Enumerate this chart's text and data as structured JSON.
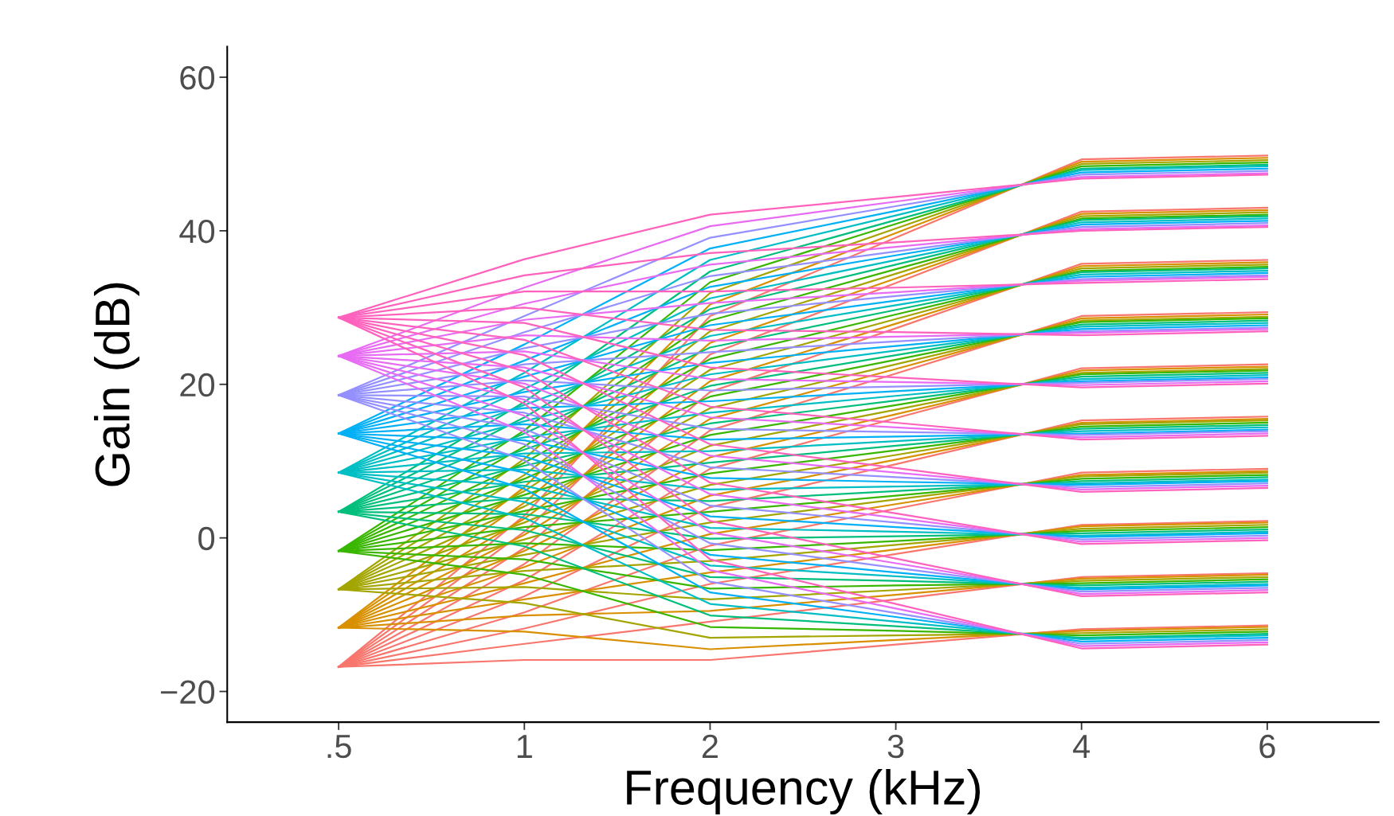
{
  "chart_data": {
    "type": "line",
    "xlabel": "Frequency (kHz)",
    "ylabel": "Gain (dB)",
    "categories": [
      ".5",
      "1",
      "2",
      "3",
      "4",
      "6"
    ],
    "ylim": [
      -24,
      64
    ],
    "yticks": [
      {
        "value": -20,
        "label": "−20"
      },
      0,
      20,
      40,
      60
    ],
    "grid": false,
    "marker": "none",
    "line_style": "solid",
    "series": [
      {
        "color": "#F8766D",
        "values": [
          -16.8,
          -15.9,
          -15.9,
          -13.9,
          -11.9,
          -11.4
        ]
      },
      {
        "color": "#F8766D",
        "values": [
          -16.8,
          -13.8,
          -10.9,
          -8.0,
          -5.1,
          -4.6
        ]
      },
      {
        "color": "#F8766D",
        "values": [
          -16.8,
          -11.8,
          -6.0,
          -2.1,
          1.7,
          2.2
        ]
      },
      {
        "color": "#F8766D",
        "values": [
          -16.8,
          -9.7,
          -1.0,
          3.8,
          8.5,
          9.0
        ]
      },
      {
        "color": "#F8766D",
        "values": [
          -16.8,
          -7.6,
          4.0,
          9.6,
          15.3,
          15.8
        ]
      },
      {
        "color": "#F8766D",
        "values": [
          -16.8,
          -5.5,
          9.0,
          15.6,
          22.1,
          22.6
        ]
      },
      {
        "color": "#F8766D",
        "values": [
          -16.8,
          -3.4,
          14.0,
          21.4,
          28.9,
          29.4
        ]
      },
      {
        "color": "#F8766D",
        "values": [
          -16.8,
          -1.3,
          19.0,
          27.3,
          35.7,
          36.2
        ]
      },
      {
        "color": "#F8766D",
        "values": [
          -16.8,
          0.8,
          23.9,
          33.2,
          42.5,
          43.0
        ]
      },
      {
        "color": "#F8766D",
        "values": [
          -16.8,
          2.9,
          28.9,
          39.1,
          49.3,
          49.8
        ]
      },
      {
        "color": "#D89000",
        "values": [
          -11.7,
          -12.2,
          -14.5,
          -13.3,
          -12.1,
          -11.6
        ]
      },
      {
        "color": "#D89000",
        "values": [
          -11.7,
          -10.1,
          -9.5,
          -7.4,
          -5.3,
          -4.8
        ]
      },
      {
        "color": "#D89000",
        "values": [
          -11.7,
          -8.0,
          -4.5,
          -1.5,
          1.5,
          2.0
        ]
      },
      {
        "color": "#D89000",
        "values": [
          -11.7,
          -5.9,
          0.5,
          4.4,
          8.2,
          8.7
        ]
      },
      {
        "color": "#D89000",
        "values": [
          -11.7,
          -3.8,
          5.5,
          10.2,
          15.0,
          15.5
        ]
      },
      {
        "color": "#D89000",
        "values": [
          -11.7,
          -1.7,
          10.5,
          16.1,
          21.8,
          22.3
        ]
      },
      {
        "color": "#D89000",
        "values": [
          -11.7,
          0.4,
          15.5,
          22.0,
          28.6,
          29.1
        ]
      },
      {
        "color": "#D89000",
        "values": [
          -11.7,
          2.5,
          20.4,
          27.9,
          35.4,
          35.9
        ]
      },
      {
        "color": "#D89000",
        "values": [
          -11.7,
          4.6,
          25.4,
          33.8,
          42.2,
          42.7
        ]
      },
      {
        "color": "#D89000",
        "values": [
          -11.7,
          6.6,
          30.4,
          39.7,
          49.0,
          49.5
        ]
      },
      {
        "color": "#A3A500",
        "values": [
          -6.7,
          -8.5,
          -13.0,
          -12.7,
          -12.4,
          -11.9
        ]
      },
      {
        "color": "#A3A500",
        "values": [
          -6.7,
          -6.4,
          -8.0,
          -6.8,
          -5.6,
          -5.1
        ]
      },
      {
        "color": "#A3A500",
        "values": [
          -6.7,
          -4.3,
          -3.0,
          -0.9,
          1.2,
          1.7
        ]
      },
      {
        "color": "#A3A500",
        "values": [
          -6.7,
          -2.2,
          2.0,
          5.0,
          8.0,
          8.5
        ]
      },
      {
        "color": "#A3A500",
        "values": [
          -6.7,
          -0.2,
          6.9,
          10.8,
          14.8,
          15.3
        ]
      },
      {
        "color": "#A3A500",
        "values": [
          -6.7,
          2.0,
          12.0,
          16.7,
          21.5,
          22.0
        ]
      },
      {
        "color": "#A3A500",
        "values": [
          -6.7,
          4.1,
          16.9,
          22.6,
          28.3,
          28.8
        ]
      },
      {
        "color": "#A3A500",
        "values": [
          -6.7,
          6.1,
          21.9,
          28.5,
          35.1,
          35.6
        ]
      },
      {
        "color": "#A3A500",
        "values": [
          -6.7,
          8.2,
          26.9,
          34.4,
          41.9,
          42.4
        ]
      },
      {
        "color": "#A3A500",
        "values": [
          -6.7,
          10.3,
          31.9,
          40.3,
          48.7,
          49.2
        ]
      },
      {
        "color": "#39B600",
        "values": [
          -1.7,
          -4.8,
          -11.6,
          -12.1,
          -12.7,
          -12.2
        ]
      },
      {
        "color": "#39B600",
        "values": [
          -1.7,
          -2.8,
          -6.6,
          -6.2,
          -5.9,
          -5.4
        ]
      },
      {
        "color": "#39B600",
        "values": [
          -1.7,
          -0.7,
          -1.6,
          -0.4,
          0.9,
          1.4
        ]
      },
      {
        "color": "#39B600",
        "values": [
          -1.7,
          1.4,
          3.4,
          5.5,
          7.7,
          8.2
        ]
      },
      {
        "color": "#39B600",
        "values": [
          -1.7,
          3.5,
          8.4,
          11.4,
          14.5,
          15.0
        ]
      },
      {
        "color": "#39B600",
        "values": [
          -1.7,
          5.6,
          13.4,
          17.3,
          21.3,
          21.8
        ]
      },
      {
        "color": "#39B600",
        "values": [
          -1.7,
          7.7,
          18.4,
          23.2,
          28.1,
          28.6
        ]
      },
      {
        "color": "#39B600",
        "values": [
          -1.7,
          9.8,
          23.3,
          29.1,
          34.8,
          35.3
        ]
      },
      {
        "color": "#39B600",
        "values": [
          -1.7,
          11.9,
          28.3,
          35.0,
          41.6,
          42.1
        ]
      },
      {
        "color": "#39B600",
        "values": [
          -1.7,
          14.0,
          33.3,
          40.9,
          48.4,
          48.9
        ]
      },
      {
        "color": "#00BF7D",
        "values": [
          3.4,
          -1.1,
          -10.1,
          -11.5,
          -13.0,
          -12.5
        ]
      },
      {
        "color": "#00BF7D",
        "values": [
          3.4,
          1.0,
          -5.1,
          -5.6,
          -6.2,
          -5.7
        ]
      },
      {
        "color": "#00BF7D",
        "values": [
          3.4,
          3.1,
          -0.1,
          0.2,
          0.6,
          1.1
        ]
      },
      {
        "color": "#00BF7D",
        "values": [
          3.4,
          5.2,
          4.8,
          6.1,
          7.4,
          7.9
        ]
      },
      {
        "color": "#00BF7D",
        "values": [
          3.4,
          7.3,
          9.8,
          12.0,
          14.2,
          14.7
        ]
      },
      {
        "color": "#00BF7D",
        "values": [
          3.4,
          9.4,
          14.9,
          17.9,
          21.0,
          21.5
        ]
      },
      {
        "color": "#00BF7D",
        "values": [
          3.4,
          11.5,
          19.8,
          23.8,
          27.8,
          28.3
        ]
      },
      {
        "color": "#00BF7D",
        "values": [
          3.4,
          13.6,
          24.8,
          29.7,
          34.6,
          35.1
        ]
      },
      {
        "color": "#00BF7D",
        "values": [
          3.4,
          15.7,
          29.8,
          35.6,
          41.4,
          41.9
        ]
      },
      {
        "color": "#00BF7D",
        "values": [
          3.4,
          17.7,
          34.7,
          41.4,
          48.1,
          48.6
        ]
      },
      {
        "color": "#00BFC4",
        "values": [
          8.5,
          2.6,
          -8.6,
          -10.9,
          -13.2,
          -12.7
        ]
      },
      {
        "color": "#00BFC4",
        "values": [
          8.5,
          4.7,
          -3.6,
          -5.0,
          -6.5,
          -6.0
        ]
      },
      {
        "color": "#00BFC4",
        "values": [
          8.5,
          6.8,
          1.3,
          0.8,
          0.3,
          0.8
        ]
      },
      {
        "color": "#00BFC4",
        "values": [
          8.5,
          8.9,
          6.3,
          6.7,
          7.1,
          7.6
        ]
      },
      {
        "color": "#00BFC4",
        "values": [
          8.5,
          11.0,
          11.3,
          12.6,
          13.9,
          14.4
        ]
      },
      {
        "color": "#00BFC4",
        "values": [
          8.5,
          13.1,
          16.3,
          18.5,
          20.7,
          21.2
        ]
      },
      {
        "color": "#00BFC4",
        "values": [
          8.5,
          15.2,
          21.3,
          24.4,
          27.5,
          28.0
        ]
      },
      {
        "color": "#00BFC4",
        "values": [
          8.5,
          17.3,
          26.3,
          30.3,
          34.3,
          34.8
        ]
      },
      {
        "color": "#00BFC4",
        "values": [
          8.5,
          19.4,
          31.2,
          36.2,
          41.1,
          41.6
        ]
      },
      {
        "color": "#00BFC4",
        "values": [
          8.5,
          21.5,
          36.2,
          42.0,
          47.9,
          48.4
        ]
      },
      {
        "color": "#00B0F6",
        "values": [
          13.6,
          6.4,
          -7.1,
          -10.3,
          -13.5,
          -13.0
        ]
      },
      {
        "color": "#00B0F6",
        "values": [
          13.6,
          8.5,
          -2.2,
          -4.5,
          -6.7,
          -6.2
        ]
      },
      {
        "color": "#00B0F6",
        "values": [
          13.6,
          10.6,
          2.8,
          1.4,
          0.1,
          0.6
        ]
      },
      {
        "color": "#00B0F6",
        "values": [
          13.6,
          12.7,
          7.8,
          7.3,
          6.9,
          7.4
        ]
      },
      {
        "color": "#00B0F6",
        "values": [
          13.6,
          14.8,
          12.8,
          13.2,
          13.6,
          14.1
        ]
      },
      {
        "color": "#00B0F6",
        "values": [
          13.6,
          16.9,
          17.8,
          19.1,
          20.4,
          20.9
        ]
      },
      {
        "color": "#00B0F6",
        "values": [
          13.6,
          19.0,
          22.8,
          25.0,
          27.2,
          27.7
        ]
      },
      {
        "color": "#00B0F6",
        "values": [
          13.6,
          21.0,
          27.7,
          30.9,
          34.0,
          34.5
        ]
      },
      {
        "color": "#00B0F6",
        "values": [
          13.6,
          23.1,
          32.7,
          36.8,
          40.8,
          41.3
        ]
      },
      {
        "color": "#00B0F6",
        "values": [
          13.6,
          25.2,
          37.7,
          42.6,
          47.6,
          48.1
        ]
      },
      {
        "color": "#9590FF",
        "values": [
          18.6,
          10.1,
          -5.7,
          -9.8,
          -13.8,
          -13.3
        ]
      },
      {
        "color": "#9590FF",
        "values": [
          18.6,
          12.2,
          -0.7,
          -3.9,
          -7.0,
          -6.5
        ]
      },
      {
        "color": "#9590FF",
        "values": [
          18.6,
          14.2,
          4.2,
          2.0,
          -0.2,
          0.3
        ]
      },
      {
        "color": "#9590FF",
        "values": [
          18.6,
          16.3,
          9.2,
          7.9,
          6.6,
          7.1
        ]
      },
      {
        "color": "#9590FF",
        "values": [
          18.6,
          18.4,
          14.2,
          13.8,
          13.4,
          13.9
        ]
      },
      {
        "color": "#9590FF",
        "values": [
          18.6,
          20.5,
          19.2,
          19.7,
          20.2,
          20.7
        ]
      },
      {
        "color": "#9590FF",
        "values": [
          18.6,
          22.6,
          24.2,
          25.6,
          26.9,
          27.4
        ]
      },
      {
        "color": "#9590FF",
        "values": [
          18.6,
          24.7,
          29.2,
          31.5,
          33.7,
          34.2
        ]
      },
      {
        "color": "#9590FF",
        "values": [
          18.6,
          26.8,
          34.1,
          37.3,
          40.5,
          41.0
        ]
      },
      {
        "color": "#9590FF",
        "values": [
          18.6,
          28.9,
          39.1,
          43.2,
          47.3,
          47.8
        ]
      },
      {
        "color": "#E76BF3",
        "values": [
          23.7,
          13.8,
          -4.2,
          -9.2,
          -14.1,
          -13.6
        ]
      },
      {
        "color": "#E76BF3",
        "values": [
          23.7,
          15.9,
          0.7,
          -3.3,
          -7.3,
          -6.8
        ]
      },
      {
        "color": "#E76BF3",
        "values": [
          23.7,
          18.0,
          5.7,
          2.6,
          -0.5,
          0.0
        ]
      },
      {
        "color": "#E76BF3",
        "values": [
          23.7,
          20.1,
          10.7,
          8.5,
          6.3,
          6.8
        ]
      },
      {
        "color": "#E76BF3",
        "values": [
          23.7,
          22.2,
          15.7,
          14.4,
          13.1,
          13.6
        ]
      },
      {
        "color": "#E76BF3",
        "values": [
          23.7,
          24.3,
          20.7,
          20.3,
          19.9,
          20.4
        ]
      },
      {
        "color": "#E76BF3",
        "values": [
          23.7,
          26.4,
          25.7,
          26.2,
          26.7,
          27.2
        ]
      },
      {
        "color": "#E76BF3",
        "values": [
          23.7,
          28.4,
          30.6,
          32.0,
          33.5,
          34.0
        ]
      },
      {
        "color": "#E76BF3",
        "values": [
          23.7,
          30.5,
          35.6,
          37.9,
          40.2,
          40.7
        ]
      },
      {
        "color": "#E76BF3",
        "values": [
          23.7,
          32.6,
          40.6,
          43.8,
          47.0,
          47.5
        ]
      },
      {
        "color": "#FF62BC",
        "values": [
          28.7,
          17.5,
          -2.8,
          -8.6,
          -14.4,
          -13.9
        ]
      },
      {
        "color": "#FF62BC",
        "values": [
          28.7,
          19.6,
          2.2,
          -2.7,
          -7.6,
          -7.1
        ]
      },
      {
        "color": "#FF62BC",
        "values": [
          28.7,
          21.7,
          7.2,
          3.2,
          -0.8,
          -0.3
        ]
      },
      {
        "color": "#FF62BC",
        "values": [
          28.7,
          23.8,
          12.2,
          9.1,
          6.0,
          6.5
        ]
      },
      {
        "color": "#FF62BC",
        "values": [
          28.7,
          25.8,
          17.1,
          15.0,
          12.8,
          13.3
        ]
      },
      {
        "color": "#FF62BC",
        "values": [
          28.7,
          28.0,
          22.2,
          20.9,
          19.6,
          20.1
        ]
      },
      {
        "color": "#FF62BC",
        "values": [
          28.7,
          30.0,
          27.1,
          26.8,
          26.4,
          26.9
        ]
      },
      {
        "color": "#FF62BC",
        "values": [
          28.7,
          32.1,
          32.1,
          32.6,
          33.2,
          33.7
        ]
      },
      {
        "color": "#FF62BC",
        "values": [
          28.7,
          34.2,
          37.1,
          38.5,
          40.0,
          40.5
        ]
      },
      {
        "color": "#FF62BC",
        "values": [
          28.7,
          36.3,
          42.1,
          44.4,
          46.8,
          47.3
        ]
      }
    ]
  }
}
